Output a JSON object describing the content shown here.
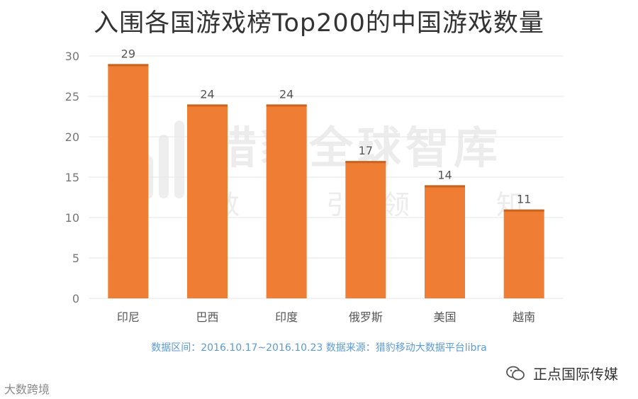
{
  "chart_data": {
    "type": "bar",
    "title": "入围各国游戏榜Top200的中国游戏数量",
    "categories": [
      "印尼",
      "巴西",
      "印度",
      "俄罗斯",
      "美国",
      "越南"
    ],
    "values": [
      29,
      24,
      24,
      17,
      14,
      11
    ],
    "ylim": [
      0,
      30
    ],
    "yticks": [
      0,
      5,
      10,
      15,
      20,
      25,
      30
    ],
    "grid": true,
    "legend": "none",
    "bar_color": "#f07d34"
  },
  "source_note": "数据区间：2016.10.17~2016.10.23 数据来源：猎豹移动大数据平台libra",
  "watermark": {
    "main": "猎豹全球智库",
    "sub": "数据引领认知"
  },
  "brand_left": "大数跨境",
  "brand_right": "正点国际传媒",
  "icons": {
    "brand_right_icon": "wechat-icon",
    "watermark_icon": "cheetah-logo-icon"
  }
}
